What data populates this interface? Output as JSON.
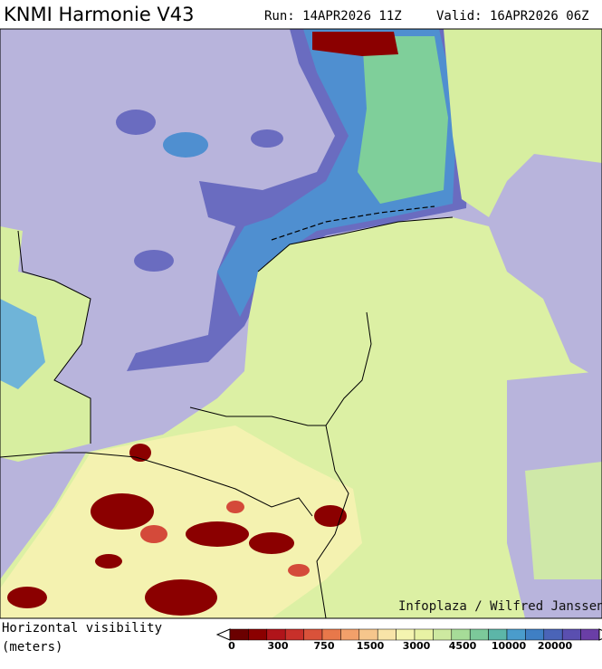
{
  "header": {
    "title": "KNMI Harmonie V43",
    "run": "Run: 14APR2026 11Z",
    "valid": "Valid: 16APR2026 06Z"
  },
  "map": {
    "credit": "Infoplaza / Wilfred Janssen"
  },
  "legend": {
    "label_line1": "Horizontal visibility",
    "label_line2": "(meters)",
    "ticks": [
      0,
      300,
      750,
      1500,
      3000,
      4500,
      10000,
      20000
    ]
  }
}
